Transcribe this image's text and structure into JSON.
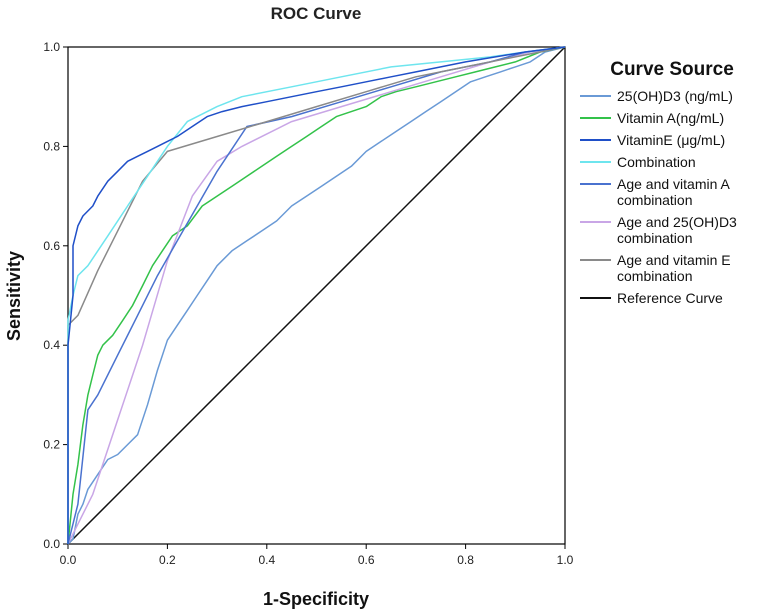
{
  "chart_data": {
    "type": "line",
    "title": "ROC Curve",
    "xlabel": "1-Specificity",
    "ylabel": "Sensitivity",
    "xlim": [
      0,
      1
    ],
    "ylim": [
      0,
      1
    ],
    "xticks": [
      "0.0",
      "0.2",
      "0.4",
      "0.6",
      "0.8",
      "1.0"
    ],
    "yticks": [
      "0.0",
      "0.2",
      "0.4",
      "0.6",
      "0.8",
      "1.0"
    ],
    "legend_title": "Curve Source",
    "legend_position": "right",
    "series": [
      {
        "name": "25(OH)D3 (ng/mL)",
        "legend_lines": [
          "25(OH)D3 (ng/mL)"
        ],
        "color": "#6a9ad6",
        "points": [
          [
            0,
            0
          ],
          [
            0.01,
            0.01
          ],
          [
            0.02,
            0.06
          ],
          [
            0.03,
            0.08
          ],
          [
            0.04,
            0.11
          ],
          [
            0.06,
            0.14
          ],
          [
            0.08,
            0.17
          ],
          [
            0.1,
            0.18
          ],
          [
            0.12,
            0.2
          ],
          [
            0.14,
            0.22
          ],
          [
            0.16,
            0.28
          ],
          [
            0.18,
            0.35
          ],
          [
            0.2,
            0.41
          ],
          [
            0.22,
            0.44
          ],
          [
            0.24,
            0.47
          ],
          [
            0.26,
            0.5
          ],
          [
            0.28,
            0.53
          ],
          [
            0.3,
            0.56
          ],
          [
            0.33,
            0.59
          ],
          [
            0.36,
            0.61
          ],
          [
            0.39,
            0.63
          ],
          [
            0.42,
            0.65
          ],
          [
            0.45,
            0.68
          ],
          [
            0.48,
            0.7
          ],
          [
            0.51,
            0.72
          ],
          [
            0.54,
            0.74
          ],
          [
            0.57,
            0.76
          ],
          [
            0.6,
            0.79
          ],
          [
            0.63,
            0.81
          ],
          [
            0.66,
            0.83
          ],
          [
            0.69,
            0.85
          ],
          [
            0.72,
            0.87
          ],
          [
            0.75,
            0.89
          ],
          [
            0.78,
            0.91
          ],
          [
            0.81,
            0.93
          ],
          [
            0.84,
            0.94
          ],
          [
            0.87,
            0.95
          ],
          [
            0.9,
            0.96
          ],
          [
            0.93,
            0.97
          ],
          [
            0.96,
            0.99
          ],
          [
            1,
            1
          ]
        ]
      },
      {
        "name": "Vitamin A(ng/mL)",
        "legend_lines": [
          "Vitamin A(ng/mL)"
        ],
        "color": "#33c24a",
        "points": [
          [
            0,
            0
          ],
          [
            0.01,
            0.1
          ],
          [
            0.02,
            0.16
          ],
          [
            0.03,
            0.24
          ],
          [
            0.04,
            0.3
          ],
          [
            0.05,
            0.34
          ],
          [
            0.06,
            0.38
          ],
          [
            0.07,
            0.4
          ],
          [
            0.09,
            0.42
          ],
          [
            0.11,
            0.45
          ],
          [
            0.13,
            0.48
          ],
          [
            0.15,
            0.52
          ],
          [
            0.17,
            0.56
          ],
          [
            0.19,
            0.59
          ],
          [
            0.21,
            0.62
          ],
          [
            0.24,
            0.64
          ],
          [
            0.27,
            0.68
          ],
          [
            0.3,
            0.7
          ],
          [
            0.33,
            0.72
          ],
          [
            0.36,
            0.74
          ],
          [
            0.39,
            0.76
          ],
          [
            0.42,
            0.78
          ],
          [
            0.45,
            0.8
          ],
          [
            0.48,
            0.82
          ],
          [
            0.51,
            0.84
          ],
          [
            0.54,
            0.86
          ],
          [
            0.57,
            0.87
          ],
          [
            0.6,
            0.88
          ],
          [
            0.63,
            0.9
          ],
          [
            0.66,
            0.91
          ],
          [
            0.7,
            0.92
          ],
          [
            0.74,
            0.93
          ],
          [
            0.78,
            0.94
          ],
          [
            0.82,
            0.95
          ],
          [
            0.86,
            0.96
          ],
          [
            0.9,
            0.97
          ],
          [
            0.95,
            0.99
          ],
          [
            1,
            1
          ]
        ]
      },
      {
        "name": "VitaminE (μg/mL)",
        "legend_lines": [
          "VitaminE (μg/mL)"
        ],
        "color": "#1f4fc8",
        "points": [
          [
            0,
            0
          ],
          [
            0,
            0.4
          ],
          [
            0.01,
            0.5
          ],
          [
            0.01,
            0.6
          ],
          [
            0.02,
            0.64
          ],
          [
            0.03,
            0.66
          ],
          [
            0.05,
            0.68
          ],
          [
            0.06,
            0.7
          ],
          [
            0.08,
            0.73
          ],
          [
            0.1,
            0.75
          ],
          [
            0.12,
            0.77
          ],
          [
            0.14,
            0.78
          ],
          [
            0.16,
            0.79
          ],
          [
            0.18,
            0.8
          ],
          [
            0.2,
            0.81
          ],
          [
            0.22,
            0.82
          ],
          [
            0.25,
            0.84
          ],
          [
            0.28,
            0.86
          ],
          [
            0.31,
            0.87
          ],
          [
            0.35,
            0.88
          ],
          [
            0.4,
            0.89
          ],
          [
            0.45,
            0.9
          ],
          [
            0.5,
            0.91
          ],
          [
            0.55,
            0.92
          ],
          [
            0.6,
            0.93
          ],
          [
            0.65,
            0.94
          ],
          [
            0.7,
            0.95
          ],
          [
            0.75,
            0.96
          ],
          [
            0.8,
            0.97
          ],
          [
            0.86,
            0.98
          ],
          [
            0.92,
            0.99
          ],
          [
            1,
            1
          ]
        ]
      },
      {
        "name": "Combination",
        "legend_lines": [
          "Combination"
        ],
        "color": "#6ee5ee",
        "points": [
          [
            0,
            0
          ],
          [
            0,
            0.45
          ],
          [
            0.01,
            0.5
          ],
          [
            0.02,
            0.54
          ],
          [
            0.04,
            0.56
          ],
          [
            0.08,
            0.62
          ],
          [
            0.12,
            0.68
          ],
          [
            0.16,
            0.74
          ],
          [
            0.2,
            0.8
          ],
          [
            0.24,
            0.85
          ],
          [
            0.3,
            0.88
          ],
          [
            0.35,
            0.9
          ],
          [
            0.45,
            0.92
          ],
          [
            0.55,
            0.94
          ],
          [
            0.65,
            0.96
          ],
          [
            0.75,
            0.97
          ],
          [
            0.85,
            0.98
          ],
          [
            0.92,
            0.99
          ],
          [
            1,
            1
          ]
        ]
      },
      {
        "name": "Age and vitamin A combination",
        "legend_lines": [
          "Age and vitamin A",
          "combination"
        ],
        "color": "#4a72cf",
        "points": [
          [
            0,
            0
          ],
          [
            0.02,
            0.08
          ],
          [
            0.04,
            0.27
          ],
          [
            0.06,
            0.3
          ],
          [
            0.1,
            0.38
          ],
          [
            0.14,
            0.46
          ],
          [
            0.18,
            0.54
          ],
          [
            0.22,
            0.61
          ],
          [
            0.26,
            0.68
          ],
          [
            0.3,
            0.75
          ],
          [
            0.36,
            0.84
          ],
          [
            0.45,
            0.86
          ],
          [
            0.55,
            0.89
          ],
          [
            0.65,
            0.92
          ],
          [
            0.75,
            0.95
          ],
          [
            0.85,
            0.97
          ],
          [
            0.92,
            0.99
          ],
          [
            1,
            1
          ]
        ]
      },
      {
        "name": "Age and 25(OH)D3 combination",
        "legend_lines": [
          "Age and 25(OH)D3",
          "combination"
        ],
        "color": "#c9a6e6",
        "points": [
          [
            0,
            0
          ],
          [
            0.02,
            0.04
          ],
          [
            0.05,
            0.1
          ],
          [
            0.1,
            0.25
          ],
          [
            0.15,
            0.4
          ],
          [
            0.2,
            0.57
          ],
          [
            0.25,
            0.7
          ],
          [
            0.3,
            0.77
          ],
          [
            0.35,
            0.8
          ],
          [
            0.45,
            0.85
          ],
          [
            0.55,
            0.88
          ],
          [
            0.65,
            0.91
          ],
          [
            0.75,
            0.94
          ],
          [
            0.85,
            0.97
          ],
          [
            0.93,
            0.99
          ],
          [
            1,
            1
          ]
        ]
      },
      {
        "name": "Age and vitamin E combination",
        "legend_lines": [
          "Age and vitamin E",
          "combination"
        ],
        "color": "#8a8a8a",
        "points": [
          [
            0,
            0
          ],
          [
            0,
            0.44
          ],
          [
            0.02,
            0.46
          ],
          [
            0.06,
            0.55
          ],
          [
            0.1,
            0.63
          ],
          [
            0.15,
            0.73
          ],
          [
            0.2,
            0.79
          ],
          [
            0.3,
            0.82
          ],
          [
            0.4,
            0.85
          ],
          [
            0.5,
            0.88
          ],
          [
            0.6,
            0.91
          ],
          [
            0.7,
            0.94
          ],
          [
            0.8,
            0.96
          ],
          [
            0.9,
            0.98
          ],
          [
            1,
            1
          ]
        ]
      },
      {
        "name": "Reference Curve",
        "legend_lines": [
          "Reference Curve"
        ],
        "color": "#111111",
        "points": [
          [
            0,
            0
          ],
          [
            1,
            1
          ]
        ]
      }
    ]
  }
}
